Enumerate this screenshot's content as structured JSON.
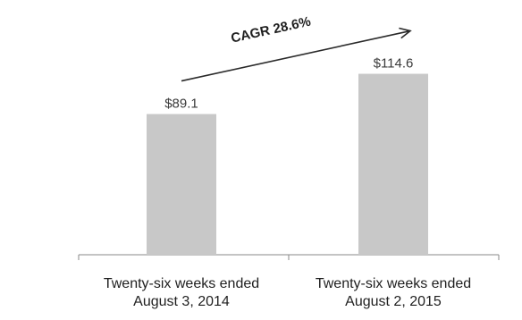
{
  "chart_data": {
    "type": "bar",
    "categories": [
      [
        "Twenty-six weeks ended",
        "August 3, 2014"
      ],
      [
        "Twenty-six weeks ended",
        "August 2, 2015"
      ]
    ],
    "values": [
      89.1,
      114.6
    ],
    "value_labels": [
      "$89.1",
      "$114.6"
    ],
    "ylim": [
      0,
      150
    ],
    "grid": false,
    "legend": "none",
    "annotation": {
      "text": "CAGR 28.6%",
      "kind": "arrow",
      "from_bar": 0,
      "to_bar": 1
    },
    "colors": {
      "bar": "#c8c8c8",
      "axis": "#8a8a8a",
      "text": "#1f1f1f",
      "arrow": "#2a2a2a"
    }
  }
}
